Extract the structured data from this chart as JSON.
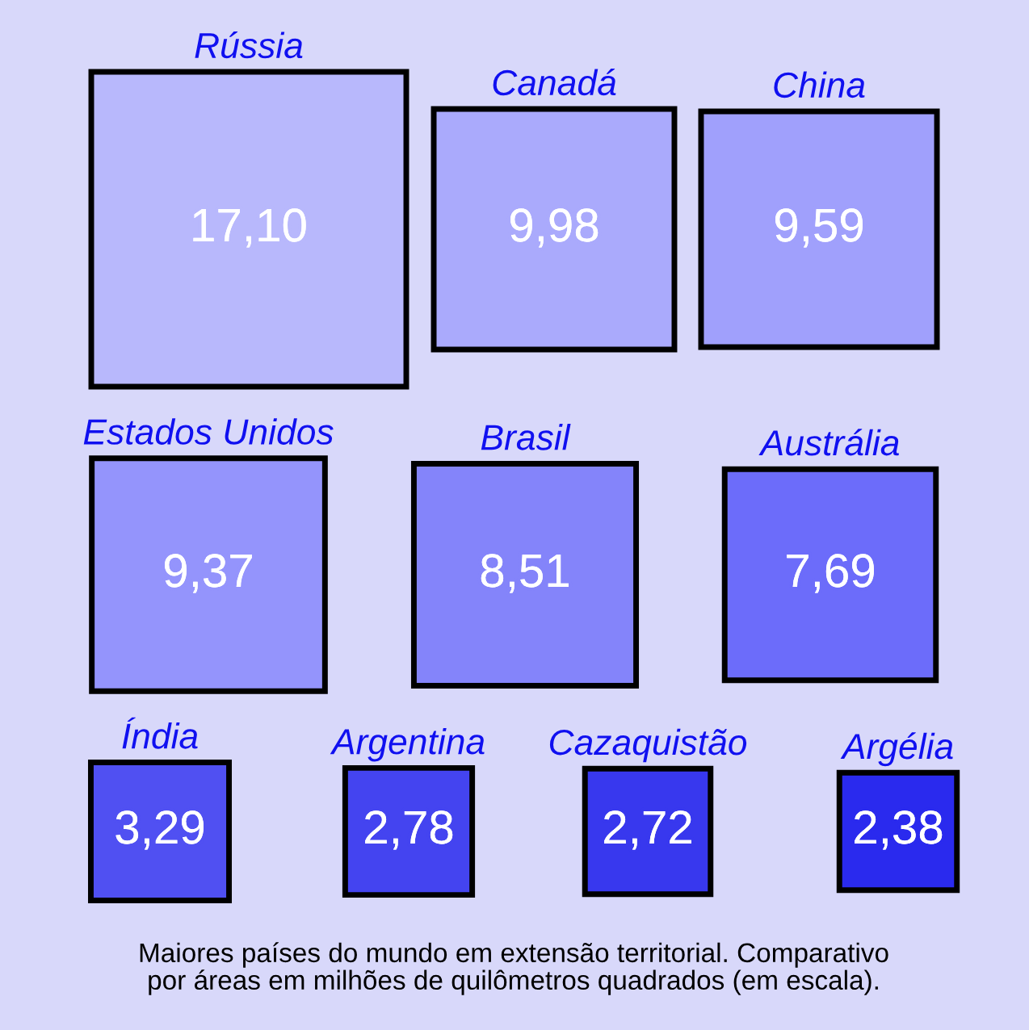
{
  "chart_data": {
    "type": "other",
    "categories": [
      "Rússia",
      "Canadá",
      "China",
      "Estados Unidos",
      "Brasil",
      "Austrália",
      "Índia",
      "Argentina",
      "Cazaquistão",
      "Argélia"
    ],
    "values": [
      17.1,
      9.98,
      9.59,
      9.37,
      8.51,
      7.69,
      3.29,
      2.78,
      2.72,
      2.38
    ],
    "value_labels": [
      "17,10",
      "9,98",
      "9,59",
      "9,37",
      "8,51",
      "7,69",
      "3,29",
      "2,78",
      "2,72",
      "2,38"
    ],
    "colors": [
      "#b8b8fc",
      "#aaaafc",
      "#a0a0fc",
      "#9494fc",
      "#8484fa",
      "#6c6cfa",
      "#5050f2",
      "#4444f0",
      "#3838ee",
      "#2a2aee"
    ],
    "annotations": [
      "Maiores países do mundo em extensão territorial. Comparativo\npor áreas em milhões de quilômetros quadrados (em escala)."
    ]
  }
}
